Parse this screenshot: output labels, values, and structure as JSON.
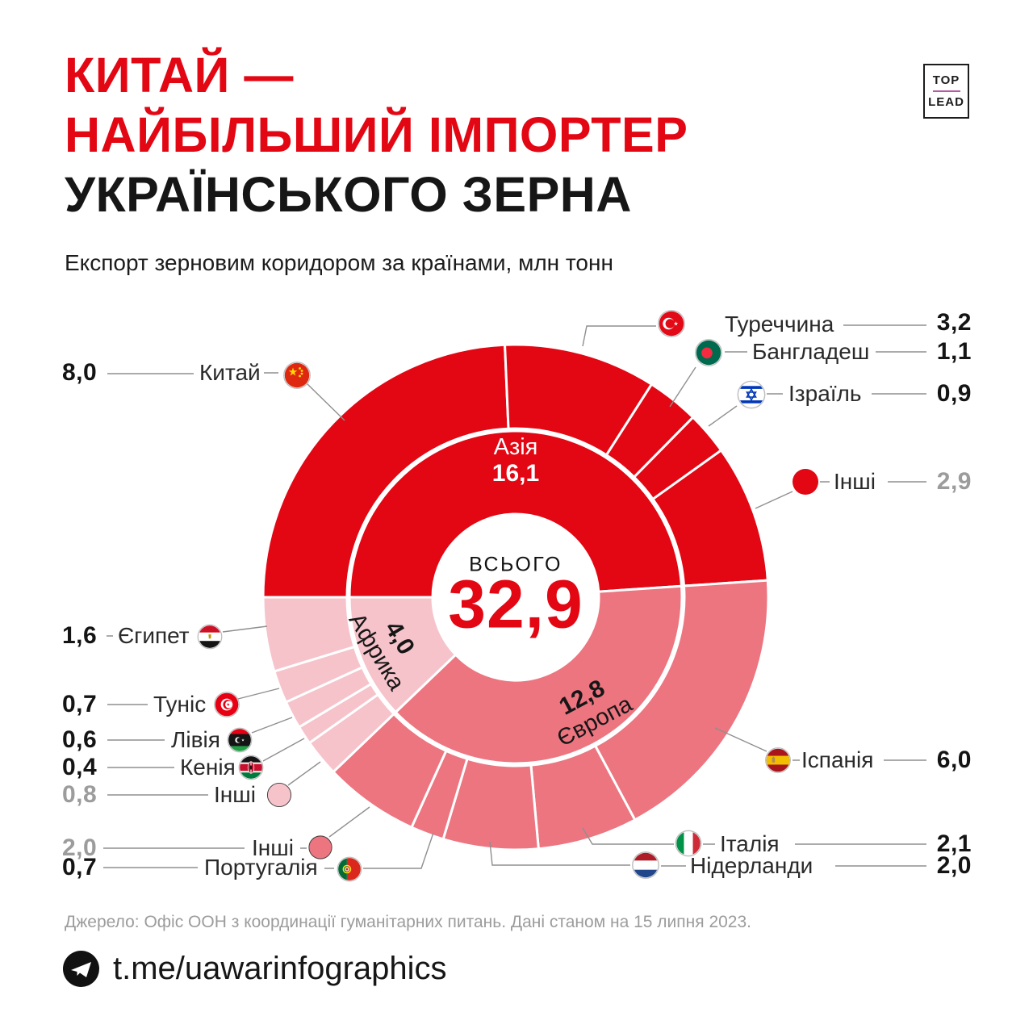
{
  "header": {
    "title1": "КИТАЙ —",
    "title2": "НАЙБІЛЬШИЙ ІМПОРТЕР",
    "title3": "УКРАЇНСЬКОГО ЗЕРНА",
    "subtitle": "Експорт зерновим коридором за країнами, млн тонн"
  },
  "logo": {
    "top": "TOP",
    "lead": "LEAD"
  },
  "colors": {
    "accent_red": "#E30613",
    "asia": "#E30613",
    "europe": "#EC7580",
    "africa": "#F6C3CB",
    "muted_value": "#9C9C9C"
  },
  "chart_data": {
    "type": "donut-sunburst",
    "title": "Експорт зерновим коридором за країнами, млн тонн",
    "units": "млн тонн",
    "center": {
      "label": "ВСЬОГО",
      "value": 32.9,
      "display": "32,9"
    },
    "start_angle_deg": 180,
    "direction": "clockwise",
    "continents": [
      {
        "name": "Азія",
        "value": 16.1,
        "display": "16,1",
        "color": "#E30613",
        "label_color": "#FFFFFF"
      },
      {
        "name": "Європа",
        "value": 12.8,
        "display": "12,8",
        "color": "#EC7580",
        "label_color": "#161616"
      },
      {
        "name": "Африка",
        "value": 4.0,
        "display": "4,0",
        "color": "#F6C3CB",
        "label_color": "#161616"
      }
    ],
    "countries": [
      {
        "name": "Китай",
        "value": 8.0,
        "display": "8,0",
        "continent": "Азія"
      },
      {
        "name": "Туреччина",
        "value": 3.2,
        "display": "3,2",
        "continent": "Азія"
      },
      {
        "name": "Бангладеш",
        "value": 1.1,
        "display": "1,1",
        "continent": "Азія"
      },
      {
        "name": "Ізраїль",
        "value": 0.9,
        "display": "0,9",
        "continent": "Азія"
      },
      {
        "name": "Інші",
        "value": 2.9,
        "display": "2,9",
        "continent": "Азія",
        "muted": true
      },
      {
        "name": "Іспанія",
        "value": 6.0,
        "display": "6,0",
        "continent": "Європа"
      },
      {
        "name": "Італія",
        "value": 2.1,
        "display": "2,1",
        "continent": "Європа"
      },
      {
        "name": "Нідерланди",
        "value": 2.0,
        "display": "2,0",
        "continent": "Європа"
      },
      {
        "name": "Португалія",
        "value": 0.7,
        "display": "0,7",
        "continent": "Європа"
      },
      {
        "name": "Інші",
        "value": 2.0,
        "display": "2,0",
        "continent": "Європа",
        "muted": true
      },
      {
        "name": "Інші",
        "value": 0.8,
        "display": "0,8",
        "continent": "Африка",
        "muted": true
      },
      {
        "name": "Кенія",
        "value": 0.4,
        "display": "0,4",
        "continent": "Африка"
      },
      {
        "name": "Лівія",
        "value": 0.6,
        "display": "0,6",
        "continent": "Африка"
      },
      {
        "name": "Туніс",
        "value": 0.7,
        "display": "0,7",
        "continent": "Африка"
      },
      {
        "name": "Єгипет",
        "value": 1.6,
        "display": "1,6",
        "continent": "Африка"
      }
    ]
  },
  "footer": {
    "source": "Джерело: Офіс ООН з координації гуманітарних питань. Дані станом на 15 липня 2023.",
    "telegram": "t.me/uawarinfographics"
  }
}
